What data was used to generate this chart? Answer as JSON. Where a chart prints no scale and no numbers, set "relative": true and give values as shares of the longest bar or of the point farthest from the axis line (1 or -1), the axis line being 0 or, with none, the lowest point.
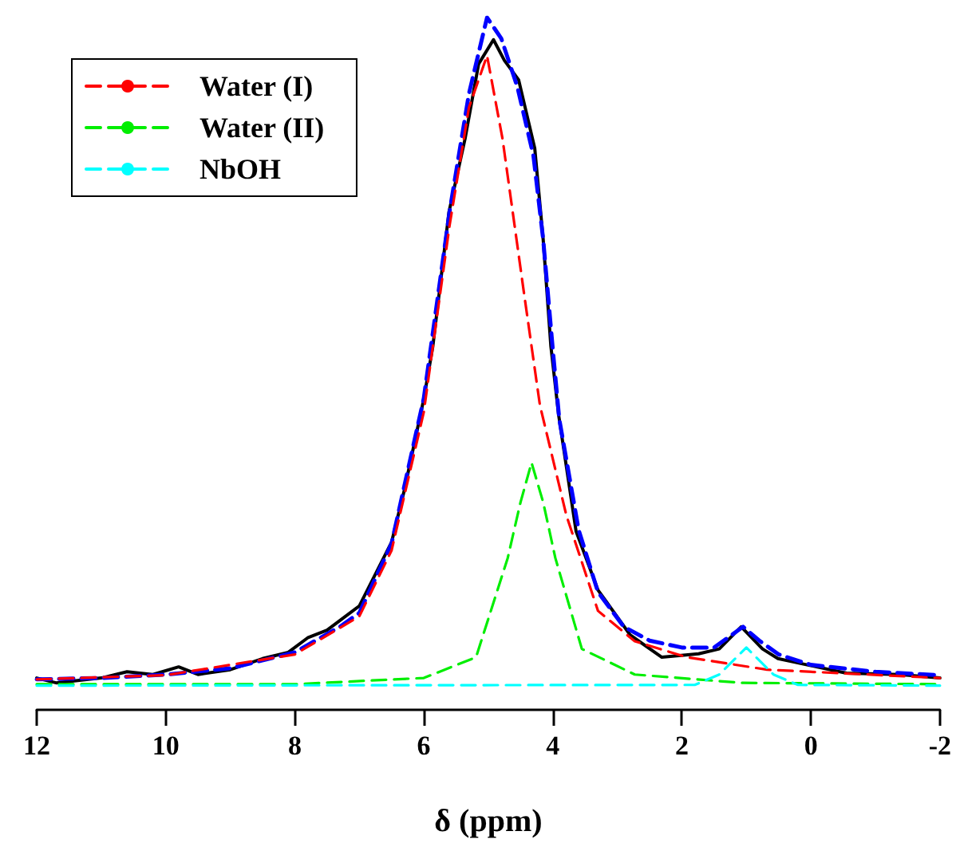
{
  "chart_data": {
    "type": "line",
    "xlabel": "δ (ppm)",
    "relative": true,
    "xlim": [
      12,
      -2
    ],
    "xticks": [
      12,
      10,
      8,
      6,
      4,
      2,
      0,
      -2
    ],
    "tick_labels": "x",
    "legend": "top left",
    "marker": "none",
    "series": [
      {
        "color": "#000000",
        "line_style": "solid",
        "x": [
          12,
          11.7,
          11,
          10.6,
          10.2,
          9.8,
          9.5,
          9,
          8.5,
          8.1,
          7.8,
          7.5,
          7.0,
          6.5,
          6.3,
          6.0,
          5.86,
          5.61,
          5.36,
          5.15,
          4.92,
          4.75,
          4.53,
          4.28,
          4.15,
          4.03,
          3.91,
          3.64,
          3.3,
          2.8,
          2.31,
          1.74,
          1.42,
          1.08,
          0.75,
          0.51,
          0.26,
          -0.55,
          -1.38,
          -2
        ],
        "values": [
          0.046,
          0.039,
          0.046,
          0.055,
          0.051,
          0.062,
          0.051,
          0.058,
          0.074,
          0.083,
          0.104,
          0.115,
          0.15,
          0.242,
          0.318,
          0.449,
          0.525,
          0.719,
          0.825,
          0.933,
          0.968,
          0.938,
          0.91,
          0.811,
          0.68,
          0.525,
          0.426,
          0.258,
          0.173,
          0.108,
          0.076,
          0.081,
          0.088,
          0.12,
          0.088,
          0.074,
          0.069,
          0.053,
          0.051,
          0.046
        ]
      },
      {
        "color": "#0000ff",
        "line_style": "dashed",
        "x": [
          12,
          11,
          10,
          9,
          8,
          7.3,
          7.0,
          6.5,
          6,
          5.6,
          5.3,
          5.02,
          4.8,
          4.55,
          4.3,
          4.15,
          4.0,
          3.9,
          3.6,
          3.3,
          2.9,
          2.5,
          2.0,
          1.5,
          1.2,
          1.05,
          0.8,
          0.5,
          0,
          -1,
          -2
        ],
        "values": [
          0.044,
          0.046,
          0.051,
          0.06,
          0.083,
          0.12,
          0.14,
          0.24,
          0.45,
          0.72,
          0.89,
          1.0,
          0.97,
          0.9,
          0.8,
          0.68,
          0.52,
          0.42,
          0.26,
          0.17,
          0.12,
          0.1,
          0.09,
          0.09,
          0.11,
          0.12,
          0.1,
          0.08,
          0.065,
          0.055,
          0.05
        ]
      },
      {
        "name": "Water (I)",
        "color": "#ff0000",
        "line_style": "dashed",
        "x": [
          12,
          10,
          8,
          7,
          6.5,
          6,
          5.6,
          5.3,
          5.02,
          4.78,
          4.45,
          4.2,
          3.79,
          3.3,
          2.73,
          1.92,
          0.68,
          -2
        ],
        "values": [
          0.044,
          0.05,
          0.08,
          0.135,
          0.23,
          0.43,
          0.7,
          0.87,
          0.945,
          0.825,
          0.604,
          0.44,
          0.281,
          0.143,
          0.099,
          0.076,
          0.058,
          0.046
        ]
      },
      {
        "name": "Water (II)",
        "color": "#00ee00",
        "line_style": "dashed",
        "x": [
          12,
          8,
          6,
          5.19,
          4.7,
          4.5,
          4.33,
          4.15,
          3.96,
          3.55,
          2.73,
          1.08,
          -2
        ],
        "values": [
          0.037,
          0.037,
          0.046,
          0.076,
          0.219,
          0.3,
          0.357,
          0.3,
          0.219,
          0.088,
          0.051,
          0.039,
          0.037
        ]
      },
      {
        "name": "NbOH",
        "color": "#00ffff",
        "line_style": "dashed",
        "x": [
          12,
          1.8,
          1.42,
          1.0,
          0.58,
          0.2,
          -2
        ],
        "values": [
          0.035,
          0.036,
          0.051,
          0.09,
          0.051,
          0.036,
          0.035
        ]
      }
    ]
  }
}
